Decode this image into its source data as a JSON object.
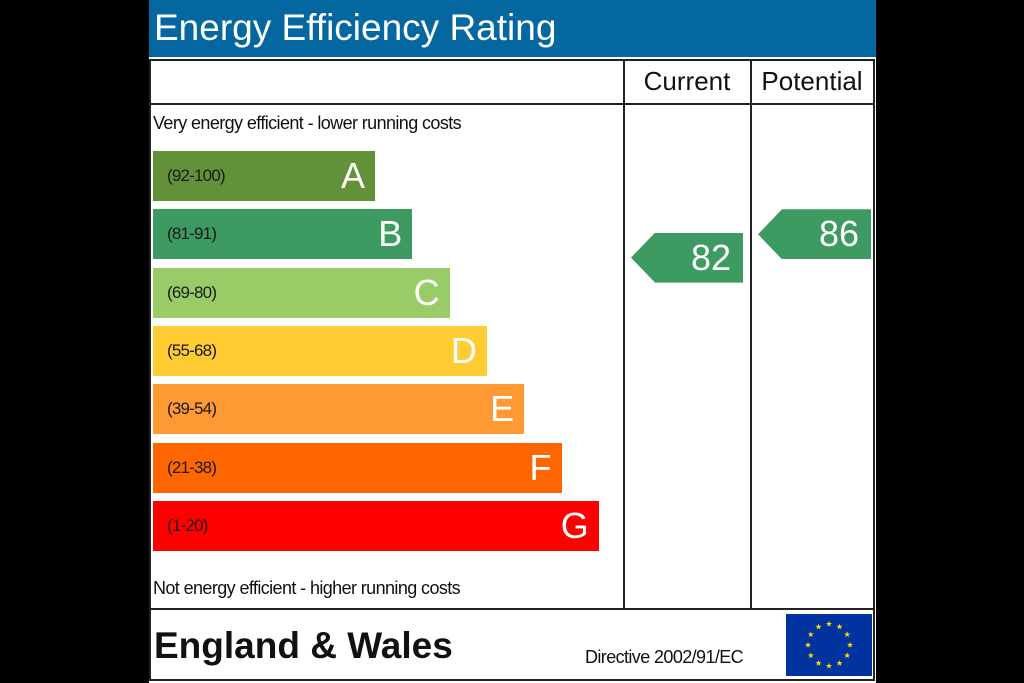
{
  "title": "Energy Efficiency Rating",
  "columns": {
    "current": "Current",
    "potential": "Potential"
  },
  "captions": {
    "top": "Very energy efficient - lower running costs",
    "bottom": "Not energy efficient - higher running costs"
  },
  "footer": {
    "region": "England & Wales",
    "directive": "Directive 2002/91/EC"
  },
  "colors": {
    "title_bg": "#05679f",
    "flag_bg": "#0033a0",
    "star": "#ffdd00"
  },
  "chart_data": {
    "type": "bar",
    "title": "Energy Efficiency Rating",
    "categories": [
      "A",
      "B",
      "C",
      "D",
      "E",
      "F",
      "G"
    ],
    "ranges": [
      "(92-100)",
      "(81-91)",
      "(69-80)",
      "(55-68)",
      "(39-54)",
      "(21-38)",
      "(1-20)"
    ],
    "bands": [
      {
        "letter": "A",
        "range": "(92-100)",
        "min": 92,
        "max": 100,
        "color": "#63913a"
      },
      {
        "letter": "B",
        "range": "(81-91)",
        "min": 81,
        "max": 91,
        "color": "#3d9b61"
      },
      {
        "letter": "C",
        "range": "(69-80)",
        "min": 69,
        "max": 80,
        "color": "#99cc66"
      },
      {
        "letter": "D",
        "range": "(55-68)",
        "min": 55,
        "max": 68,
        "color": "#ffcc33"
      },
      {
        "letter": "E",
        "range": "(39-54)",
        "min": 39,
        "max": 54,
        "color": "#ff9933"
      },
      {
        "letter": "F",
        "range": "(21-38)",
        "min": 21,
        "max": 38,
        "color": "#ff6600"
      },
      {
        "letter": "G",
        "range": "(1-20)",
        "min": 1,
        "max": 20,
        "color": "#ff0000"
      }
    ],
    "series": [
      {
        "name": "Current",
        "value": 82,
        "band": "B",
        "color": "#3d9b61"
      },
      {
        "name": "Potential",
        "value": 86,
        "band": "B",
        "color": "#3d9b61"
      }
    ]
  }
}
